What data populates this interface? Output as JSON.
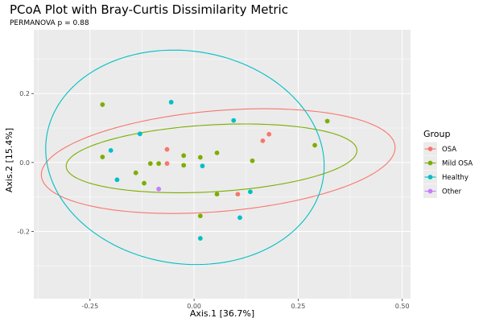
{
  "chart_data": {
    "type": "scatter",
    "title": "PCoA Plot with Bray-Curtis Dissimilarity Metric",
    "subtitle": "PERMANOVA p = 0.88",
    "xlabel": "Axis.1  [36.7%]",
    "ylabel": "Axis.2  [15.4%]",
    "xlim": [
      -0.385,
      0.52
    ],
    "ylim": [
      -0.395,
      0.385
    ],
    "x_ticks": [
      -0.25,
      0.0,
      0.25,
      0.5
    ],
    "x_tick_labels": [
      "-0.25",
      "0.00",
      "0.25",
      "0.50"
    ],
    "y_ticks": [
      -0.2,
      0.0,
      0.2
    ],
    "y_tick_labels": [
      "-0.2",
      "0.0",
      "0.2"
    ],
    "grid": true,
    "background": "#ebebeb",
    "legend": {
      "title": "Group",
      "placement": "right",
      "entries": [
        "OSA",
        "Mild OSA",
        "Healthy",
        "Other"
      ]
    },
    "series": [
      {
        "name": "OSA",
        "color": "#f8766d",
        "points": [
          [
            -0.065,
            0.038
          ],
          [
            -0.065,
            -0.003
          ],
          [
            0.18,
            0.082
          ],
          [
            0.165,
            0.063
          ],
          [
            0.105,
            -0.092
          ]
        ],
        "ellipse": {
          "cx": 0.058,
          "cy": 0.004,
          "rx": 0.427,
          "ry": 0.146,
          "angle_deg": 6
        }
      },
      {
        "name": "Mild OSA",
        "color": "#7cae00",
        "points": [
          [
            -0.22,
            0.168
          ],
          [
            -0.22,
            0.016
          ],
          [
            -0.14,
            -0.03
          ],
          [
            -0.12,
            -0.06
          ],
          [
            -0.105,
            -0.003
          ],
          [
            -0.085,
            -0.003
          ],
          [
            -0.025,
            0.02
          ],
          [
            -0.025,
            -0.008
          ],
          [
            0.015,
            0.015
          ],
          [
            0.015,
            -0.155
          ],
          [
            0.055,
            0.028
          ],
          [
            0.055,
            -0.092
          ],
          [
            0.14,
            0.005
          ],
          [
            0.29,
            0.05
          ],
          [
            0.32,
            0.12
          ]
        ],
        "ellipse": {
          "cx": 0.042,
          "cy": 0.012,
          "rx": 0.35,
          "ry": 0.097,
          "angle_deg": 4
        }
      },
      {
        "name": "Healthy",
        "color": "#00bfc4",
        "points": [
          [
            -0.2,
            0.035
          ],
          [
            -0.185,
            -0.05
          ],
          [
            -0.13,
            0.083
          ],
          [
            -0.055,
            0.175
          ],
          [
            0.02,
            -0.01
          ],
          [
            0.015,
            -0.22
          ],
          [
            0.095,
            0.122
          ],
          [
            0.11,
            -0.16
          ],
          [
            0.135,
            -0.085
          ]
        ],
        "ellipse": {
          "cx": -0.022,
          "cy": 0.015,
          "rx": 0.34,
          "ry": 0.305,
          "angle_deg": -24
        }
      },
      {
        "name": "Other",
        "color": "#c77cff",
        "points": [
          [
            -0.085,
            -0.077
          ]
        ],
        "ellipse": null
      }
    ]
  }
}
